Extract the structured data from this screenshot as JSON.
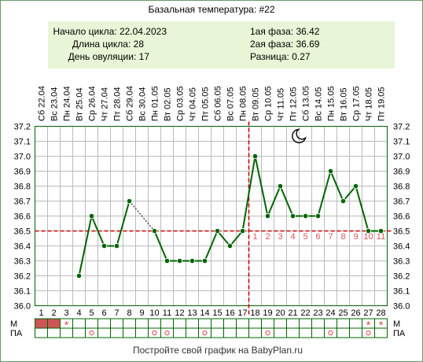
{
  "title": "Базальная температура: #22",
  "info_left": [
    {
      "label": "Начало цикла:",
      "value": "22.04.2023"
    },
    {
      "label": "Длина цикла:",
      "value": "28"
    },
    {
      "label": "День овуляции:",
      "value": "17"
    }
  ],
  "info_right": [
    {
      "label": "1ая фаза:",
      "value": "36.42"
    },
    {
      "label": "2ая фаза:",
      "value": "36.69"
    },
    {
      "label": "Разница:",
      "value": "0.27"
    }
  ],
  "footer": "Постройте свой график на BabyPlan.ru",
  "row_labels": {
    "m": "М",
    "pa": "ПА"
  },
  "moon_icon": "crescent-moon-icon",
  "colors": {
    "line": "#006400",
    "point": "#006400",
    "threshold": "#cc0000",
    "info_bg": "#e8f5d6",
    "grid": "#bbbbbb",
    "m_bleed": "#cc5555",
    "marker": "#dd5555",
    "frame": "#006400"
  },
  "chart_data": {
    "type": "line",
    "title": "Базальная температура: #22",
    "ylim": [
      36.0,
      37.2
    ],
    "yticks": [
      "37.2",
      "37.1",
      "37.0",
      "36.9",
      "36.8",
      "36.7",
      "36.6",
      "36.5",
      "36.4",
      "36.3",
      "36.2",
      "36.1",
      "36.0"
    ],
    "days": [
      1,
      2,
      3,
      4,
      5,
      6,
      7,
      8,
      9,
      10,
      11,
      12,
      13,
      14,
      15,
      16,
      17,
      18,
      19,
      20,
      21,
      22,
      23,
      24,
      25,
      26,
      27,
      28
    ],
    "dates": [
      "Сб 22.04",
      "Вс 23.04",
      "Пн 24.04",
      "Вт 25.04",
      "Ср 26.04",
      "Чт 27.04",
      "Пт 28.04",
      "Сб 29.04",
      "Вс 30.04",
      "Пн 01.05",
      "Вт 02.05",
      "Ср 03.05",
      "Чт 04.05",
      "Пт 05.05",
      "Сб 06.05",
      "Вс 07.05",
      "Пн 08.05",
      "Вт 09.05",
      "Ср 10.05",
      "Чт 11.05",
      "Пт 12.05",
      "Сб 13.05",
      "Вс 14.05",
      "Пн 15.05",
      "Вт 16.05",
      "Ср 17.05",
      "Чт 18.05",
      "Пт 19.05"
    ],
    "temperatures": [
      null,
      null,
      null,
      36.2,
      36.6,
      36.4,
      36.4,
      36.7,
      null,
      36.5,
      36.3,
      36.3,
      36.3,
      36.3,
      36.5,
      36.4,
      36.5,
      37.0,
      36.6,
      36.8,
      36.6,
      36.6,
      36.6,
      36.9,
      36.7,
      36.8,
      36.5,
      36.5
    ],
    "coverline": 36.5,
    "ovulation_day": 17,
    "post_ovulation_labels": [
      "1",
      "2",
      "3",
      "4",
      "5",
      "6",
      "7",
      "8",
      "9",
      "10",
      "11"
    ],
    "m_row": [
      "bleed",
      "bleed",
      "star",
      "",
      "",
      "",
      "",
      "",
      "",
      "",
      "",
      "",
      "",
      "",
      "",
      "",
      "",
      "",
      "",
      "",
      "",
      "",
      "",
      "",
      "",
      "",
      "star",
      "star"
    ],
    "pa_row": [
      "",
      "",
      "",
      "",
      "o",
      "",
      "",
      "",
      "",
      "o",
      "o",
      "",
      "",
      "o",
      "",
      "",
      "",
      "",
      "o",
      "",
      "",
      "",
      "",
      "o",
      "",
      "",
      "o",
      ""
    ]
  }
}
